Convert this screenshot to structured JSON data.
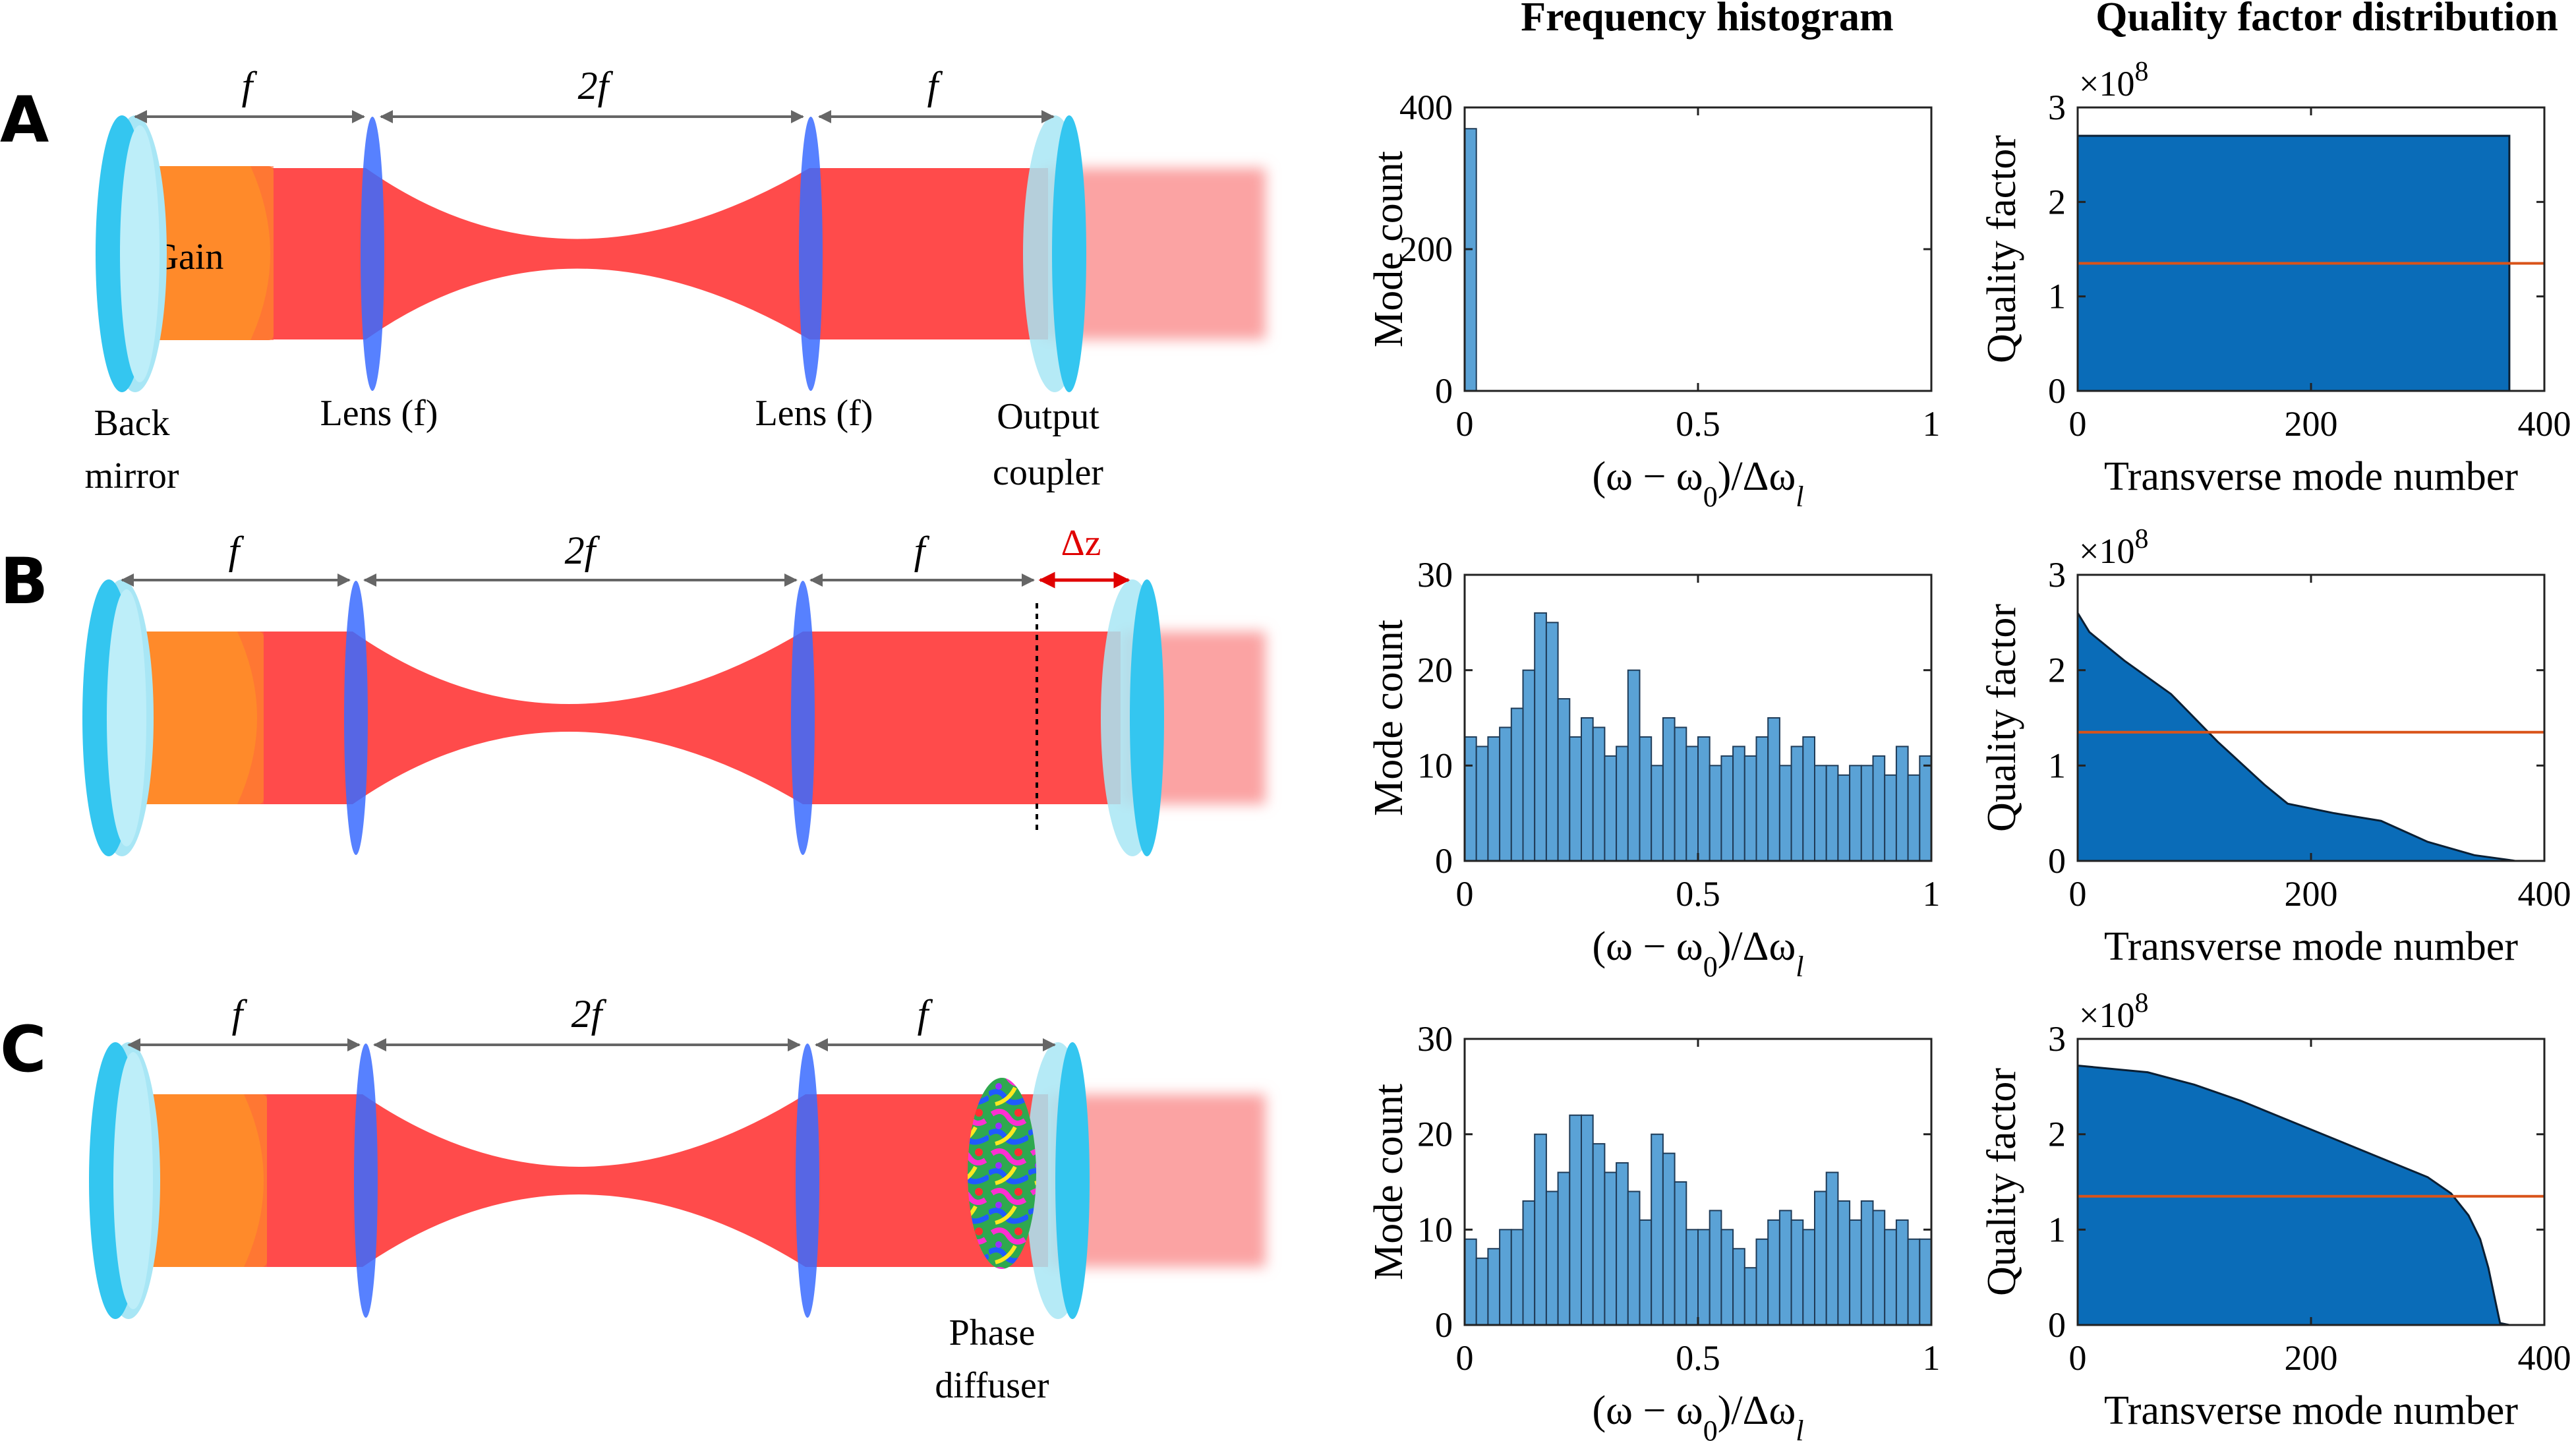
{
  "column_titles": {
    "histogram": "Frequency histogram",
    "quality": "Quality factor distribution"
  },
  "panels": [
    {
      "letter": "A",
      "dims": [
        "f",
        "2f",
        "f"
      ],
      "labels": {
        "gain": "Gain",
        "back": "Back",
        "back2": "mirror",
        "lens1": "Lens (f)",
        "lens2": "Lens (f)",
        "oc": "Output",
        "oc2": "coupler"
      }
    },
    {
      "letter": "B",
      "dims": [
        "f",
        "2f",
        "f"
      ],
      "shift": "Δz"
    },
    {
      "letter": "C",
      "dims": [
        "f",
        "2f",
        "f"
      ],
      "labels": {
        "pd": "Phase",
        "pd2": "diffuser"
      }
    }
  ],
  "chart_data": [
    {
      "type": "bar",
      "panel": "A",
      "title": "Frequency histogram",
      "xlabel": "(ω − ω0)/Δωl",
      "ylabel": "Mode count",
      "xlim": [
        0,
        1
      ],
      "ylim": [
        0,
        400
      ],
      "xticks": [
        "0",
        "0.5",
        "1"
      ],
      "yticks": [
        "0",
        "200",
        "400"
      ],
      "bin_width": 0.025,
      "values": [
        370,
        0,
        0,
        0,
        0,
        0,
        0,
        0,
        0,
        0,
        0,
        0,
        0,
        0,
        0,
        0,
        0,
        0,
        0,
        0,
        0,
        0,
        0,
        0,
        0,
        0,
        0,
        0,
        0,
        0,
        0,
        0,
        0,
        0,
        0,
        0,
        0,
        0,
        0,
        0
      ]
    },
    {
      "type": "area",
      "panel": "A",
      "title": "Quality factor distribution",
      "xlabel": "Transverse mode number",
      "ylabel": "Quality factor",
      "multiplier": "×10^8",
      "xlim": [
        0,
        400
      ],
      "ylim": [
        0,
        3
      ],
      "xticks": [
        "0",
        "200",
        "400"
      ],
      "yticks": [
        "0",
        "1",
        "2",
        "3"
      ],
      "x": [
        0,
        370,
        370
      ],
      "y": [
        2.7,
        2.7,
        0
      ],
      "threshold": 1.35
    },
    {
      "type": "bar",
      "panel": "B",
      "xlabel": "(ω − ω0)/Δωl",
      "ylabel": "Mode count",
      "xlim": [
        0,
        1
      ],
      "ylim": [
        0,
        30
      ],
      "xticks": [
        "0",
        "0.5",
        "1"
      ],
      "yticks": [
        "0",
        "10",
        "20",
        "30"
      ],
      "bin_width": 0.025,
      "values": [
        13,
        12,
        13,
        14,
        16,
        20,
        26,
        25,
        17,
        13,
        15,
        14,
        11,
        12,
        20,
        13,
        10,
        15,
        14,
        12,
        13,
        10,
        11,
        12,
        11,
        13,
        15,
        10,
        12,
        13,
        10,
        10,
        9,
        10,
        10,
        11,
        9,
        12,
        9,
        11
      ]
    },
    {
      "type": "area",
      "panel": "B",
      "xlabel": "Transverse mode number",
      "ylabel": "Quality factor",
      "multiplier": "×10^8",
      "xlim": [
        0,
        400
      ],
      "ylim": [
        0,
        3
      ],
      "xticks": [
        "0",
        "200",
        "400"
      ],
      "yticks": [
        "0",
        "1",
        "2",
        "3"
      ],
      "x": [
        0,
        10,
        40,
        80,
        120,
        160,
        180,
        200,
        220,
        260,
        300,
        340,
        370,
        375
      ],
      "y": [
        2.6,
        2.4,
        2.1,
        1.75,
        1.25,
        0.8,
        0.6,
        0.55,
        0.5,
        0.42,
        0.2,
        0.06,
        0.01,
        0
      ],
      "threshold": 1.35
    },
    {
      "type": "bar",
      "panel": "C",
      "xlabel": "(ω − ω0)/Δωl",
      "ylabel": "Mode count",
      "xlim": [
        0,
        1
      ],
      "ylim": [
        0,
        30
      ],
      "xticks": [
        "0",
        "0.5",
        "1"
      ],
      "yticks": [
        "0",
        "10",
        "20",
        "30"
      ],
      "bin_width": 0.025,
      "values": [
        9,
        7,
        8,
        10,
        10,
        13,
        20,
        14,
        16,
        22,
        22,
        19,
        16,
        17,
        14,
        11,
        20,
        18,
        15,
        10,
        10,
        12,
        10,
        8,
        6,
        9,
        11,
        12,
        11,
        10,
        14,
        16,
        13,
        11,
        13,
        12,
        10,
        11,
        9,
        9
      ]
    },
    {
      "type": "area",
      "panel": "C",
      "xlabel": "Transverse mode number",
      "ylabel": "Quality factor",
      "multiplier": "×10^8",
      "xlim": [
        0,
        400
      ],
      "ylim": [
        0,
        3
      ],
      "xticks": [
        "0",
        "200",
        "400"
      ],
      "yticks": [
        "0",
        "1",
        "2",
        "3"
      ],
      "x": [
        0,
        60,
        100,
        140,
        180,
        220,
        260,
        300,
        320,
        335,
        345,
        352,
        358,
        362,
        370
      ],
      "y": [
        2.72,
        2.65,
        2.52,
        2.35,
        2.15,
        1.95,
        1.75,
        1.55,
        1.38,
        1.15,
        0.9,
        0.6,
        0.25,
        0.02,
        0
      ],
      "threshold": 1.35
    }
  ]
}
